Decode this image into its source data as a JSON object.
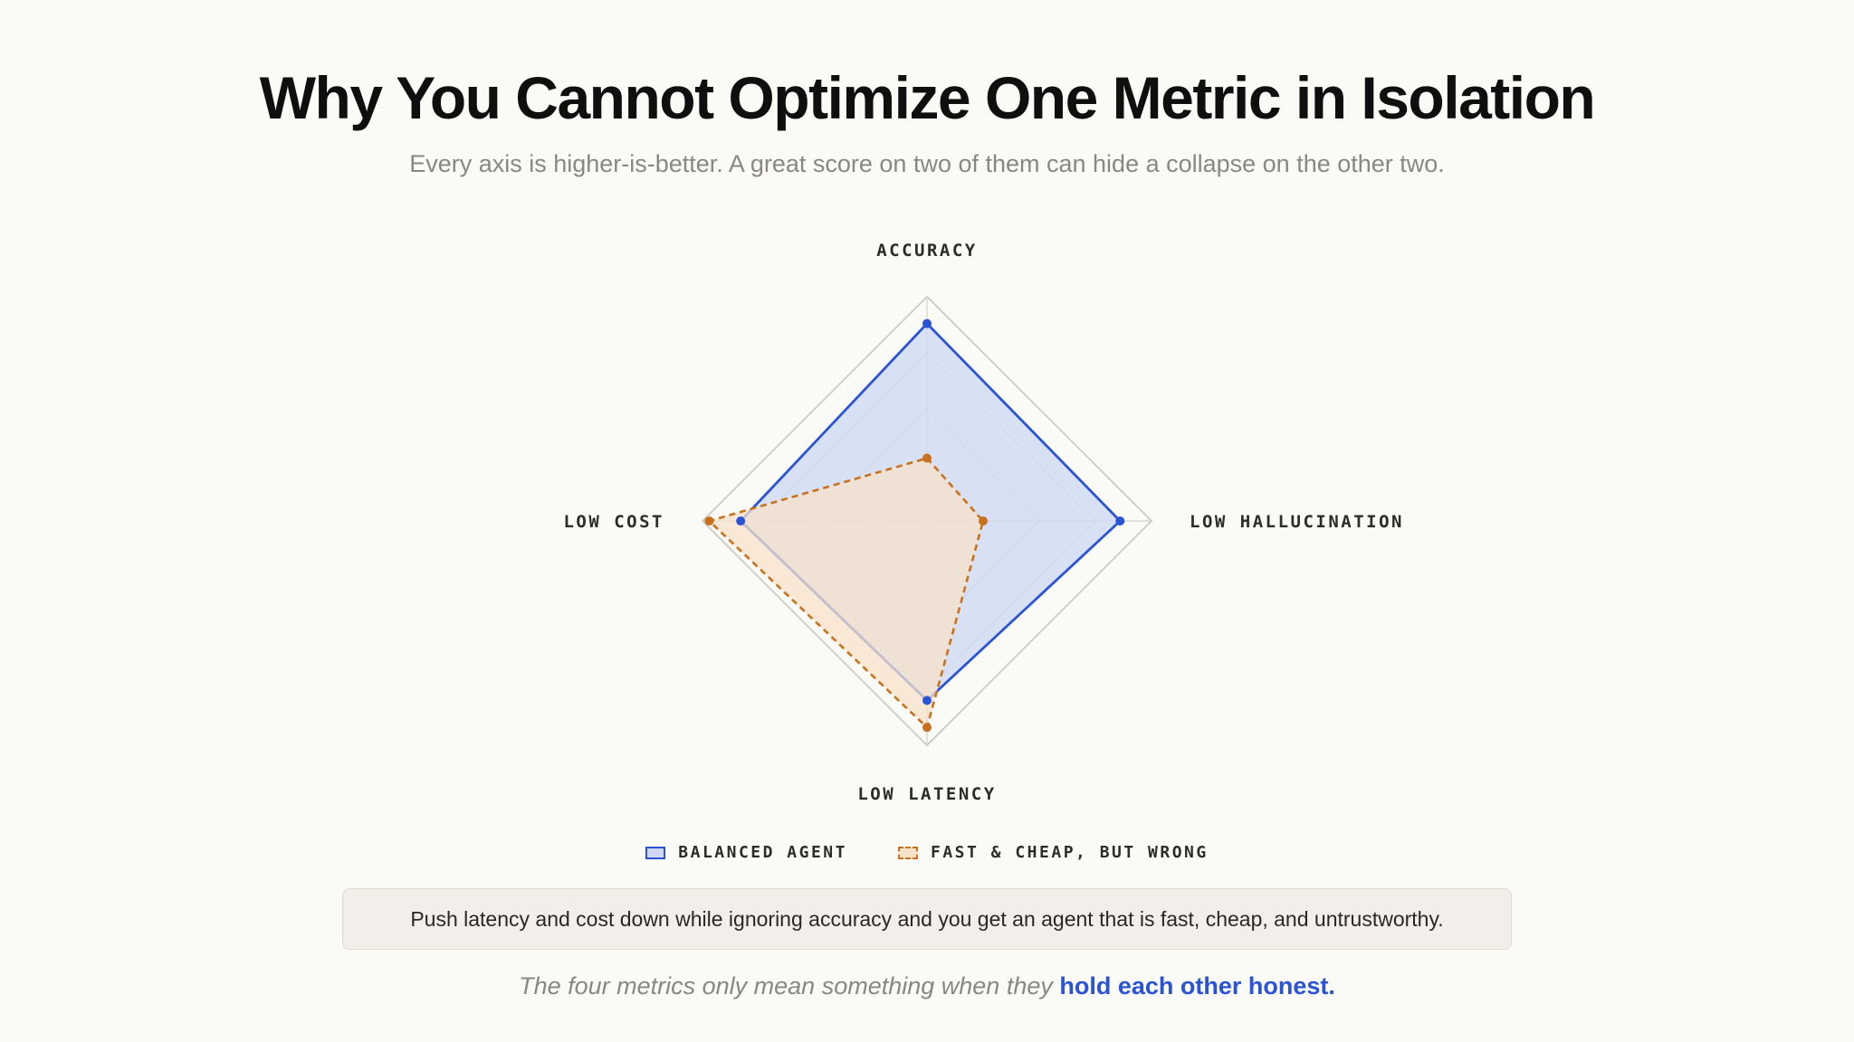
{
  "header": {
    "title": "Why You Cannot Optimize One Metric in Isolation",
    "subtitle": "Every axis is higher-is-better. A great score on two of them can hide a collapse on the other two."
  },
  "chart_data": {
    "type": "radar",
    "axes": [
      "ACCURACY",
      "LOW HALLUCINATION",
      "LOW LATENCY",
      "LOW COST"
    ],
    "range": [
      0,
      1
    ],
    "grid_levels": [
      0.25,
      0.5,
      0.75,
      1.0
    ],
    "grid": true,
    "legend_position": "bottom",
    "series": [
      {
        "name": "BALANCED AGENT",
        "values": [
          0.88,
          0.86,
          0.8,
          0.83
        ],
        "color": "#2a53d6",
        "fill": "#cfd9f3",
        "style": "solid"
      },
      {
        "name": "FAST & CHEAP, BUT WRONG",
        "values": [
          0.28,
          0.25,
          0.92,
          0.97
        ],
        "color": "#c8721f",
        "fill": "#f7e2c9",
        "style": "dashed"
      }
    ]
  },
  "callout": {
    "text": "Push latency and cost down while ignoring accuracy and you get an agent that is fast, cheap, and untrustworthy."
  },
  "footer": {
    "text": "The four metrics only mean something when they ",
    "emphasis": "hold each other honest."
  }
}
